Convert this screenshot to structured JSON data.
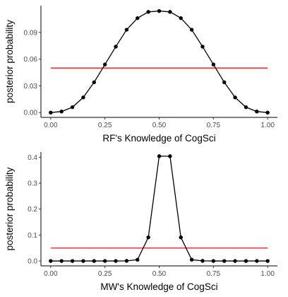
{
  "colors": {
    "series_line": "#000000",
    "series_point": "#000000",
    "reference_line": "#e41a1c",
    "axis": "#000000"
  },
  "chart_data": [
    {
      "type": "line",
      "xlabel": "RF's Knowledge of CogSci",
      "ylabel": "posterior probability",
      "xlim": [
        0,
        1
      ],
      "ylim": [
        0,
        0.12
      ],
      "xticks": [
        "0.00",
        "0.25",
        "0.50",
        "0.75",
        "1.00"
      ],
      "yticks": [
        "0.00",
        "0.03",
        "0.06",
        "0.09"
      ],
      "grid": false,
      "series": [
        {
          "x": [
            0,
            0.05,
            0.1,
            0.15,
            0.2,
            0.25,
            0.3,
            0.35,
            0.4,
            0.45,
            0.5,
            0.55,
            0.6,
            0.65,
            0.7,
            0.75,
            0.8,
            0.85,
            0.9,
            0.95,
            1
          ],
          "values": [
            0.0,
            0.0012,
            0.006,
            0.017,
            0.034,
            0.054,
            0.074,
            0.093,
            0.106,
            0.113,
            0.114,
            0.113,
            0.106,
            0.093,
            0.074,
            0.054,
            0.034,
            0.017,
            0.006,
            0.0012,
            0.0
          ]
        }
      ],
      "reference_line": {
        "x": [
          0,
          1
        ],
        "y": 0.05
      }
    },
    {
      "type": "line",
      "xlabel": "MW's Knowledge of CogSci",
      "ylabel": "posterior probability",
      "xlim": [
        0,
        1
      ],
      "ylim": [
        0,
        0.42
      ],
      "xticks": [
        "0.00",
        "0.25",
        "0.50",
        "0.75",
        "1.00"
      ],
      "yticks": [
        "0.0",
        "0.1",
        "0.2",
        "0.3",
        "0.4"
      ],
      "grid": false,
      "series": [
        {
          "x": [
            0,
            0.05,
            0.1,
            0.15,
            0.2,
            0.25,
            0.3,
            0.35,
            0.4,
            0.45,
            0.5,
            0.55,
            0.6,
            0.65,
            0.7,
            0.75,
            0.8,
            0.85,
            0.9,
            0.95,
            1
          ],
          "values": [
            0,
            0,
            0,
            0,
            0,
            0,
            0,
            0.0005,
            0.005,
            0.091,
            0.404,
            0.404,
            0.091,
            0.005,
            0.0005,
            0,
            0,
            0,
            0,
            0,
            0
          ]
        }
      ],
      "reference_line": {
        "x": [
          0,
          1
        ],
        "y": 0.05
      }
    }
  ]
}
